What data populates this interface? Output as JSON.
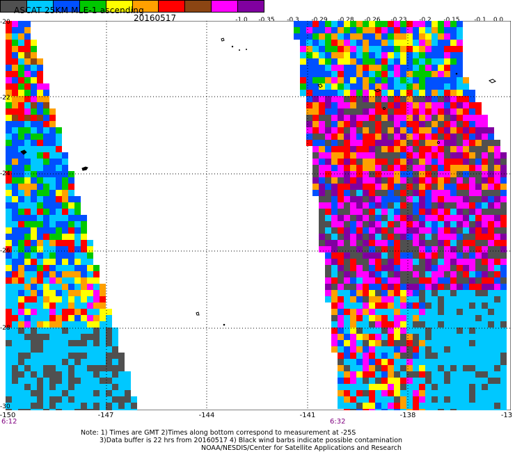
{
  "header": {
    "title": "ASCAT 25KM MLE-1 ascending",
    "date": "20160517"
  },
  "colorbar": {
    "colors": [
      "#505050",
      "#00c8ff",
      "#0050ff",
      "#00c800",
      "#ffff00",
      "#ffa000",
      "#ff0000",
      "#8b4513",
      "#ff00ff",
      "#8000a0"
    ],
    "tick_labels": [
      "-1.0",
      "-0.35",
      "-0.3",
      "-0.29",
      "-0.28",
      "-0.26",
      "-0.23",
      "-0.2",
      "-0.15",
      "-0.1",
      "0.0"
    ]
  },
  "axes": {
    "lat_labels": [
      "-20",
      "-22",
      "-24",
      "-26",
      "-28",
      "-30"
    ],
    "lon_labels": [
      "-150",
      "-147",
      "-144",
      "-141",
      "-138",
      "-13"
    ],
    "grid": true
  },
  "pass_times": [
    "6:12",
    "6:32"
  ],
  "notes": {
    "line1": "Note: 1) Times are GMT 2)Times along bottom correspond to measurement at -25S",
    "line2": "3)Data buffer is 22 hrs from 20160517 4) Black wind barbs indicate possible contamination",
    "line3": "NOAA/NESDIS/Center for Satellite Applications and Research"
  }
}
